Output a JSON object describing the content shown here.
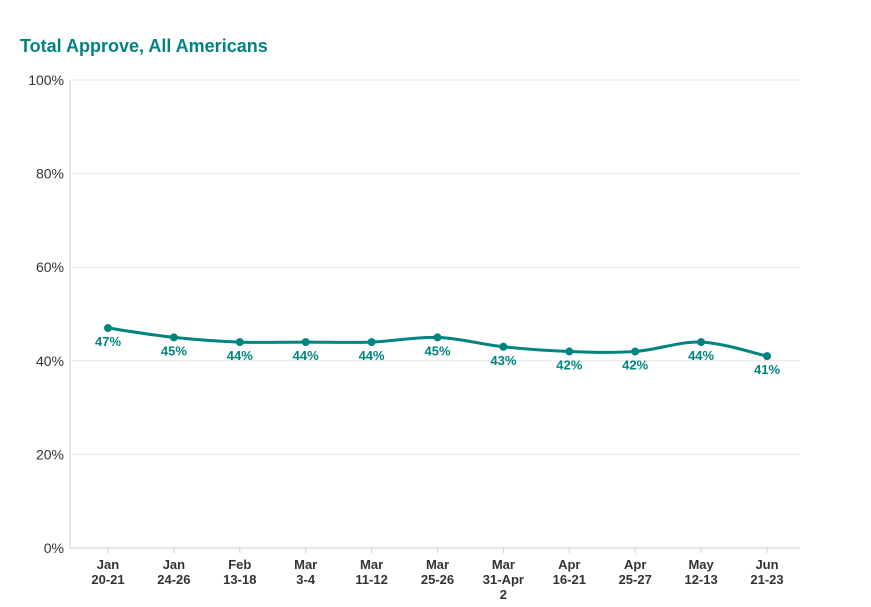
{
  "chart_data": {
    "type": "line",
    "title": "Total Approve, All Americans",
    "categories": [
      [
        "Jan",
        "20-21"
      ],
      [
        "Jan",
        "24-26"
      ],
      [
        "Feb",
        "13-18"
      ],
      [
        "Mar",
        "3-4"
      ],
      [
        "Mar",
        "11-12"
      ],
      [
        "Mar",
        "25-26"
      ],
      [
        "Mar",
        "31-Apr",
        "2"
      ],
      [
        "Apr",
        "16-21"
      ],
      [
        "Apr",
        "25-27"
      ],
      [
        "May",
        "12-13"
      ],
      [
        "Jun",
        "21-23"
      ]
    ],
    "series": [
      {
        "name": "Total Approve",
        "values": [
          47,
          45,
          44,
          44,
          44,
          45,
          43,
          42,
          42,
          44,
          41
        ],
        "labels": [
          "47%",
          "45%",
          "44%",
          "44%",
          "44%",
          "45%",
          "43%",
          "42%",
          "42%",
          "44%",
          "41%"
        ],
        "color": "#00847f"
      }
    ],
    "ylim": [
      0,
      100
    ],
    "yticks": [
      0,
      20,
      40,
      60,
      80,
      100
    ],
    "ytick_labels": [
      "0%",
      "20%",
      "40%",
      "60%",
      "80%",
      "100%"
    ],
    "xlabel": "",
    "ylabel": "",
    "grid": true,
    "colors": {
      "accent": "#00847f",
      "grid": "#e6e6e6",
      "axis": "#cccccc",
      "text": "#333333"
    }
  }
}
